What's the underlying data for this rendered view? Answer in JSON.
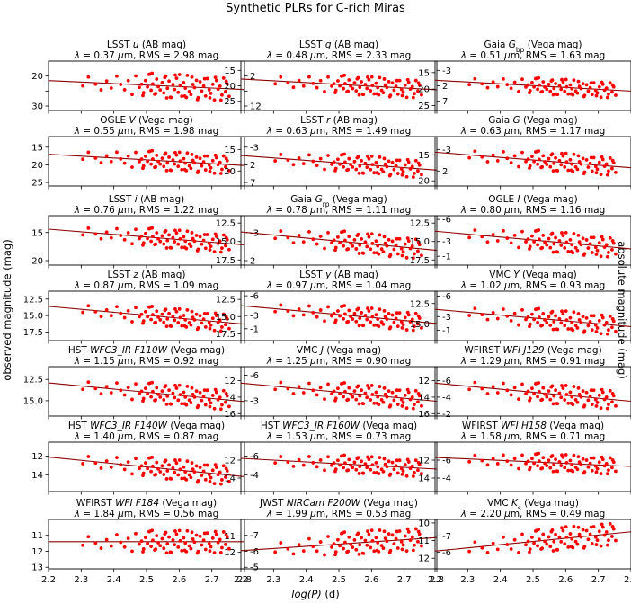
{
  "chart_data": {
    "type": "scatter",
    "title": "Synthetic PLRs for C-rich Miras",
    "xlabel_log": "log(P)",
    "xlabel_unit": "(d)",
    "ylabel_left": "observed magnitude (mag)",
    "ylabel_right": "absolute magnitude (mag)",
    "xlim": [
      2.2,
      2.8
    ],
    "xticks": [
      2.2,
      2.3,
      2.4,
      2.5,
      2.6,
      2.7,
      2.8
    ],
    "point_color": "#ff0000",
    "line_color": "#8b0000",
    "point_x": [
      2.305,
      2.322,
      2.344,
      2.361,
      2.378,
      2.392,
      2.409,
      2.421,
      2.433,
      2.444,
      2.456,
      2.467,
      2.478,
      2.485,
      2.491,
      2.497,
      2.503,
      2.508,
      2.514,
      2.519,
      2.525,
      2.531,
      2.536,
      2.542,
      2.548,
      2.553,
      2.559,
      2.564,
      2.569,
      2.575,
      2.581,
      2.586,
      2.592,
      2.597,
      2.603,
      2.608,
      2.614,
      2.619,
      2.625,
      2.631,
      2.636,
      2.642,
      2.647,
      2.653,
      2.658,
      2.664,
      2.669,
      2.675,
      2.681,
      2.686,
      2.692,
      2.697,
      2.703,
      2.708,
      2.714,
      2.719,
      2.725,
      2.731,
      2.736,
      2.742,
      2.747,
      2.753,
      2.489,
      2.511,
      2.528,
      2.556,
      2.573,
      2.601,
      2.617,
      2.639,
      2.656,
      2.678,
      2.694,
      2.711,
      2.728,
      2.744,
      2.517,
      2.562,
      2.588,
      2.622
    ],
    "scatter_unit": [
      0.31,
      -0.44,
      0.12,
      0.57,
      -0.18,
      0.38,
      -0.62,
      0.05,
      0.47,
      -0.29,
      0.83,
      -0.71,
      0.22,
      -0.05,
      0.64,
      -0.37,
      0.15,
      -0.88,
      0.41,
      -0.12,
      0.72,
      -0.53,
      0.09,
      0.35,
      -0.26,
      0.58,
      -0.81,
      0.19,
      -0.41,
      0.93,
      -0.15,
      0.26,
      -0.67,
      0.48,
      -0.08,
      0.79,
      -0.34,
      0.11,
      -0.95,
      0.37,
      0.61,
      -0.22,
      0.03,
      -0.58,
      0.85,
      -0.47,
      0.29,
      -0.13,
      0.68,
      -0.76,
      0.16,
      0.44,
      -0.31,
      0.97,
      -0.64,
      0.07,
      -0.19,
      0.53,
      -0.86,
      0.24,
      -0.39,
      0.62,
      0.88,
      -0.92,
      0.66,
      -0.69,
      0.91,
      -0.98,
      0.76,
      -0.83,
      1.0,
      -0.74,
      0.81,
      -0.89,
      0.95,
      -0.61,
      -0.99,
      0.98,
      -0.93,
      0.87
    ],
    "panels": [
      {
        "survey": "LSST",
        "band": "u",
        "sub": "",
        "system": "(AB mag)",
        "lambda": "0.37",
        "rms": "2.98",
        "ylim": [
          31.5,
          15.0
        ],
        "obs_ticks": [
          20,
          25,
          30
        ],
        "obs_tick_labels": [
          "20",
          "",
          "30"
        ],
        "abs_offset": 18.0,
        "abs_ticks": [
          2,
          7,
          12
        ],
        "abs_tick_labels": [
          "2",
          "",
          "12"
        ],
        "fit": [
          21.5,
          24.5
        ],
        "scatter": 7.4
      },
      {
        "survey": "LSST",
        "band": "g",
        "sub": "",
        "system": "(AB mag)",
        "lambda": "0.48",
        "rms": "2.33",
        "ylim": [
          28.0,
          12.0
        ],
        "obs_ticks": [
          15,
          20,
          25
        ],
        "obs_tick_labels": [
          "15",
          "20",
          "25"
        ],
        "abs_offset": 18.0,
        "abs_ticks": [
          -3,
          2,
          7
        ],
        "abs_tick_labels": [
          "-3",
          "2",
          "7"
        ],
        "fit": [
          17.8,
          21.3
        ],
        "scatter": 5.6
      },
      {
        "survey": "Gaia",
        "band": "G",
        "sub": "bp",
        "system": "(Vega mag)",
        "lambda": "0.51",
        "rms": "1.63",
        "ylim": [
          26.5,
          11.5
        ],
        "obs_ticks": [
          15,
          20,
          25
        ],
        "obs_tick_labels": [
          "15",
          "20",
          "25"
        ],
        "abs_offset": 18.0,
        "abs_ticks": [
          -3,
          2
        ],
        "abs_tick_labels": [
          "-3",
          "2"
        ],
        "fit": [
          17.3,
          20.6
        ],
        "scatter": 4.5
      },
      {
        "survey": "OGLE",
        "band": "V",
        "sub": "",
        "system": "(Vega mag)",
        "lambda": "0.55",
        "rms": "1.98",
        "ylim": [
          26.0,
          12.0
        ],
        "obs_ticks": [
          15,
          20,
          25
        ],
        "obs_tick_labels": [
          "15",
          "20",
          "25"
        ],
        "abs_offset": 18.0,
        "abs_ticks": [
          -3,
          2,
          7
        ],
        "abs_tick_labels": [
          "-3",
          "2",
          "7"
        ],
        "fit": [
          17.0,
          20.2
        ],
        "scatter": 5.0
      },
      {
        "survey": "LSST",
        "band": "r",
        "sub": "",
        "system": "(AB mag)",
        "lambda": "0.63",
        "rms": "1.49",
        "ylim": [
          23.5,
          12.0
        ],
        "obs_ticks": [
          15,
          20
        ],
        "obs_tick_labels": [
          "15",
          "20"
        ],
        "abs_offset": 18.0,
        "abs_ticks": [
          -3,
          2
        ],
        "abs_tick_labels": [
          "-3",
          "2"
        ],
        "fit": [
          16.4,
          19.8
        ],
        "scatter": 3.9
      },
      {
        "survey": "Gaia",
        "band": "G",
        "sub": "",
        "system": "(Vega mag)",
        "lambda": "0.63",
        "rms": "1.17",
        "ylim": [
          21.0,
          11.5
        ],
        "obs_ticks": [
          15,
          20
        ],
        "obs_tick_labels": [
          "15",
          "20"
        ],
        "abs_offset": 18.0,
        "abs_ticks": [
          -3,
          2
        ],
        "abs_tick_labels": [
          "-3",
          "2"
        ],
        "fit": [
          14.5,
          17.5
        ],
        "scatter": 3.3
      },
      {
        "survey": "LSST",
        "band": "i",
        "sub": "",
        "system": "(AB mag)",
        "lambda": "0.76",
        "rms": "1.22",
        "ylim": [
          20.8,
          12.0
        ],
        "obs_ticks": [
          15,
          20
        ],
        "obs_tick_labels": [
          "15",
          "20"
        ],
        "abs_offset": 18.0,
        "abs_ticks": [
          -3,
          2
        ],
        "abs_tick_labels": [
          "-3",
          "2"
        ],
        "fit": [
          14.4,
          17.2
        ],
        "scatter": 3.1
      },
      {
        "survey": "Gaia",
        "band": "G",
        "sub": "rp",
        "system": "(Vega mag)",
        "lambda": "0.78",
        "rms": "1.11",
        "ylim": [
          18.2,
          11.5
        ],
        "obs_ticks": [
          12.5,
          15.0,
          17.5
        ],
        "obs_tick_labels": [
          "12.5",
          "15.0",
          "17.5"
        ],
        "abs_offset": 18.0,
        "abs_ticks": [
          -6,
          -3,
          -1
        ],
        "abs_tick_labels": [
          "-6",
          "-3",
          "-1"
        ],
        "fit": [
          13.7,
          16.2
        ],
        "scatter": 2.6
      },
      {
        "survey": "OGLE",
        "band": "I",
        "sub": "",
        "system": "(Vega mag)",
        "lambda": "0.80",
        "rms": "1.16",
        "ylim": [
          18.2,
          11.5
        ],
        "obs_ticks": [
          12.5,
          15.0,
          17.5
        ],
        "obs_tick_labels": [
          "12.5",
          "15.0",
          "17.5"
        ],
        "abs_offset": 18.0,
        "abs_ticks": [
          -6,
          -3,
          -1
        ],
        "abs_tick_labels": [
          "-6",
          "-3",
          "-1"
        ],
        "fit": [
          13.6,
          16.0
        ],
        "scatter": 2.6
      },
      {
        "survey": "LSST",
        "band": "z",
        "sub": "",
        "system": "(AB mag)",
        "lambda": "0.87",
        "rms": "1.09",
        "ylim": [
          18.8,
          11.3
        ],
        "obs_ticks": [
          12.5,
          15.0,
          17.5
        ],
        "obs_tick_labels": [
          "12.5",
          "15.0",
          "17.5"
        ],
        "abs_offset": 18.0,
        "abs_ticks": [
          -6,
          -3,
          -1
        ],
        "abs_tick_labels": [
          "-6",
          "-3",
          "-1"
        ],
        "fit": [
          13.6,
          16.3
        ],
        "scatter": 2.6
      },
      {
        "survey": "LSST",
        "band": "y",
        "sub": "",
        "system": "(AB mag)",
        "lambda": "0.97",
        "rms": "1.04",
        "ylim": [
          18.5,
          11.3
        ],
        "obs_ticks": [
          12.5,
          15.0,
          17.5
        ],
        "obs_tick_labels": [
          "12.5",
          "15.0",
          "17.5"
        ],
        "abs_offset": 18.0,
        "abs_ticks": [
          -6,
          -3,
          -1
        ],
        "abs_tick_labels": [
          "-6",
          "-3",
          "-1"
        ],
        "fit": [
          13.4,
          16.0
        ],
        "scatter": 2.5
      },
      {
        "survey": "VMC",
        "band": "Y",
        "sub": "",
        "system": "(Vega mag)",
        "lambda": "1.02",
        "rms": "0.93",
        "ylim": [
          17.0,
          11.0
        ],
        "obs_ticks": [
          12.5,
          15.0
        ],
        "obs_tick_labels": [
          "12.5",
          "15.0"
        ],
        "abs_offset": 18.0,
        "abs_ticks": [
          -6,
          -3
        ],
        "abs_tick_labels": [
          "-6",
          "-3"
        ],
        "fit": [
          13.2,
          15.3
        ],
        "scatter": 2.2
      },
      {
        "survey": "HST",
        "band": "WFC3_IR F110W",
        "sub": "",
        "system": "(Vega mag)",
        "lambda": "1.15",
        "rms": "0.92",
        "ylim": [
          16.8,
          11.0
        ],
        "obs_ticks": [
          12.5,
          15.0
        ],
        "obs_tick_labels": [
          "12.5",
          "15.0"
        ],
        "abs_offset": 18.0,
        "abs_ticks": [
          -6,
          -3
        ],
        "abs_tick_labels": [
          "-6",
          "-3"
        ],
        "fit": [
          12.9,
          15.1
        ],
        "scatter": 2.2
      },
      {
        "survey": "VMC",
        "band": "J",
        "sub": "",
        "system": "(Vega mag)",
        "lambda": "1.25",
        "rms": "0.90",
        "ylim": [
          16.3,
          10.3
        ],
        "obs_ticks": [
          12,
          14,
          16
        ],
        "obs_tick_labels": [
          "12",
          "14",
          "16"
        ],
        "abs_offset": 18.0,
        "abs_ticks": [
          -6,
          -4,
          -2
        ],
        "abs_tick_labels": [
          "-6",
          "-4",
          "-2"
        ],
        "fit": [
          12.3,
          14.5
        ],
        "scatter": 2.2
      },
      {
        "survey": "WFIRST",
        "band": "WFI J129",
        "sub": "",
        "system": "(Vega mag)",
        "lambda": "1.29",
        "rms": "0.91",
        "ylim": [
          16.3,
          10.3
        ],
        "obs_ticks": [
          12,
          14,
          16
        ],
        "obs_tick_labels": [
          "12",
          "14",
          "16"
        ],
        "abs_offset": 18.0,
        "abs_ticks": [
          -6,
          -4,
          -2
        ],
        "abs_tick_labels": [
          "-6",
          "-4",
          "-2"
        ],
        "fit": [
          12.3,
          14.5
        ],
        "scatter": 2.2
      },
      {
        "survey": "HST",
        "band": "WFC3_IR F140W",
        "sub": "",
        "system": "(Vega mag)",
        "lambda": "1.40",
        "rms": "0.87",
        "ylim": [
          15.8,
          10.5
        ],
        "obs_ticks": [
          12,
          14
        ],
        "obs_tick_labels": [
          "12",
          "14"
        ],
        "abs_offset": 18.0,
        "abs_ticks": [
          -6,
          -4
        ],
        "abs_tick_labels": [
          "-6",
          "-4"
        ],
        "fit": [
          12.1,
          14.2
        ],
        "scatter": 2.0
      },
      {
        "survey": "HST",
        "band": "WFC3_IR F160W",
        "sub": "",
        "system": "(Vega mag)",
        "lambda": "1.53",
        "rms": "0.73",
        "ylim": [
          15.5,
          10.0
        ],
        "obs_ticks": [
          12,
          14
        ],
        "obs_tick_labels": [
          "12",
          "14"
        ],
        "abs_offset": 18.0,
        "abs_ticks": [
          -6,
          -4
        ],
        "abs_tick_labels": [
          "-6",
          "-4"
        ],
        "fit": [
          11.8,
          13.0
        ],
        "scatter": 1.8
      },
      {
        "survey": "WFIRST",
        "band": "WFI H158",
        "sub": "",
        "system": "(Vega mag)",
        "lambda": "1.58",
        "rms": "0.71",
        "ylim": [
          15.5,
          10.0
        ],
        "obs_ticks": [
          12,
          14
        ],
        "obs_tick_labels": [
          "12",
          "14"
        ],
        "abs_offset": 18.0,
        "abs_ticks": [
          -6,
          -4
        ],
        "abs_tick_labels": [
          "-6",
          "-4"
        ],
        "fit": [
          11.7,
          12.7
        ],
        "scatter": 1.8
      },
      {
        "survey": "WFIRST",
        "band": "WFI F184",
        "sub": "",
        "system": "(Vega mag)",
        "lambda": "1.84",
        "rms": "0.56",
        "ylim": [
          13.1,
          10.0
        ],
        "obs_ticks": [
          11,
          12,
          13
        ],
        "obs_tick_labels": [
          "11",
          "12",
          "13"
        ],
        "abs_offset": 18.0,
        "abs_ticks": [
          -7,
          -6,
          -5
        ],
        "abs_tick_labels": [
          "-7",
          "-6",
          "-5"
        ],
        "fit": [
          11.4,
          11.4
        ],
        "scatter": 1.3
      },
      {
        "survey": "JWST",
        "band": "NIRCam F200W",
        "sub": "",
        "system": "(Vega mag)",
        "lambda": "1.99",
        "rms": "0.53",
        "ylim": [
          13.0,
          10.0
        ],
        "obs_ticks": [
          11,
          12
        ],
        "obs_tick_labels": [
          "11",
          "12"
        ],
        "abs_offset": 18.0,
        "abs_ticks": [
          -7,
          -6
        ],
        "abs_tick_labels": [
          "-7",
          "-6"
        ],
        "fit": [
          11.9,
          11.1
        ],
        "scatter": 1.3
      },
      {
        "survey": "VMC",
        "band": "K",
        "sub": "s",
        "system": "(Vega mag)",
        "lambda": "2.20",
        "rms": "0.49",
        "ylim": [
          12.6,
          9.8
        ],
        "obs_ticks": [
          10,
          11,
          12
        ],
        "obs_tick_labels": [
          "10",
          "11",
          "12"
        ],
        "abs_offset": 18.0,
        "abs_ticks": [
          -8,
          -7,
          -6
        ],
        "abs_tick_labels": [
          "-8",
          "-7",
          "-6"
        ],
        "fit": [
          11.6,
          10.5
        ],
        "scatter": 1.2
      }
    ]
  }
}
